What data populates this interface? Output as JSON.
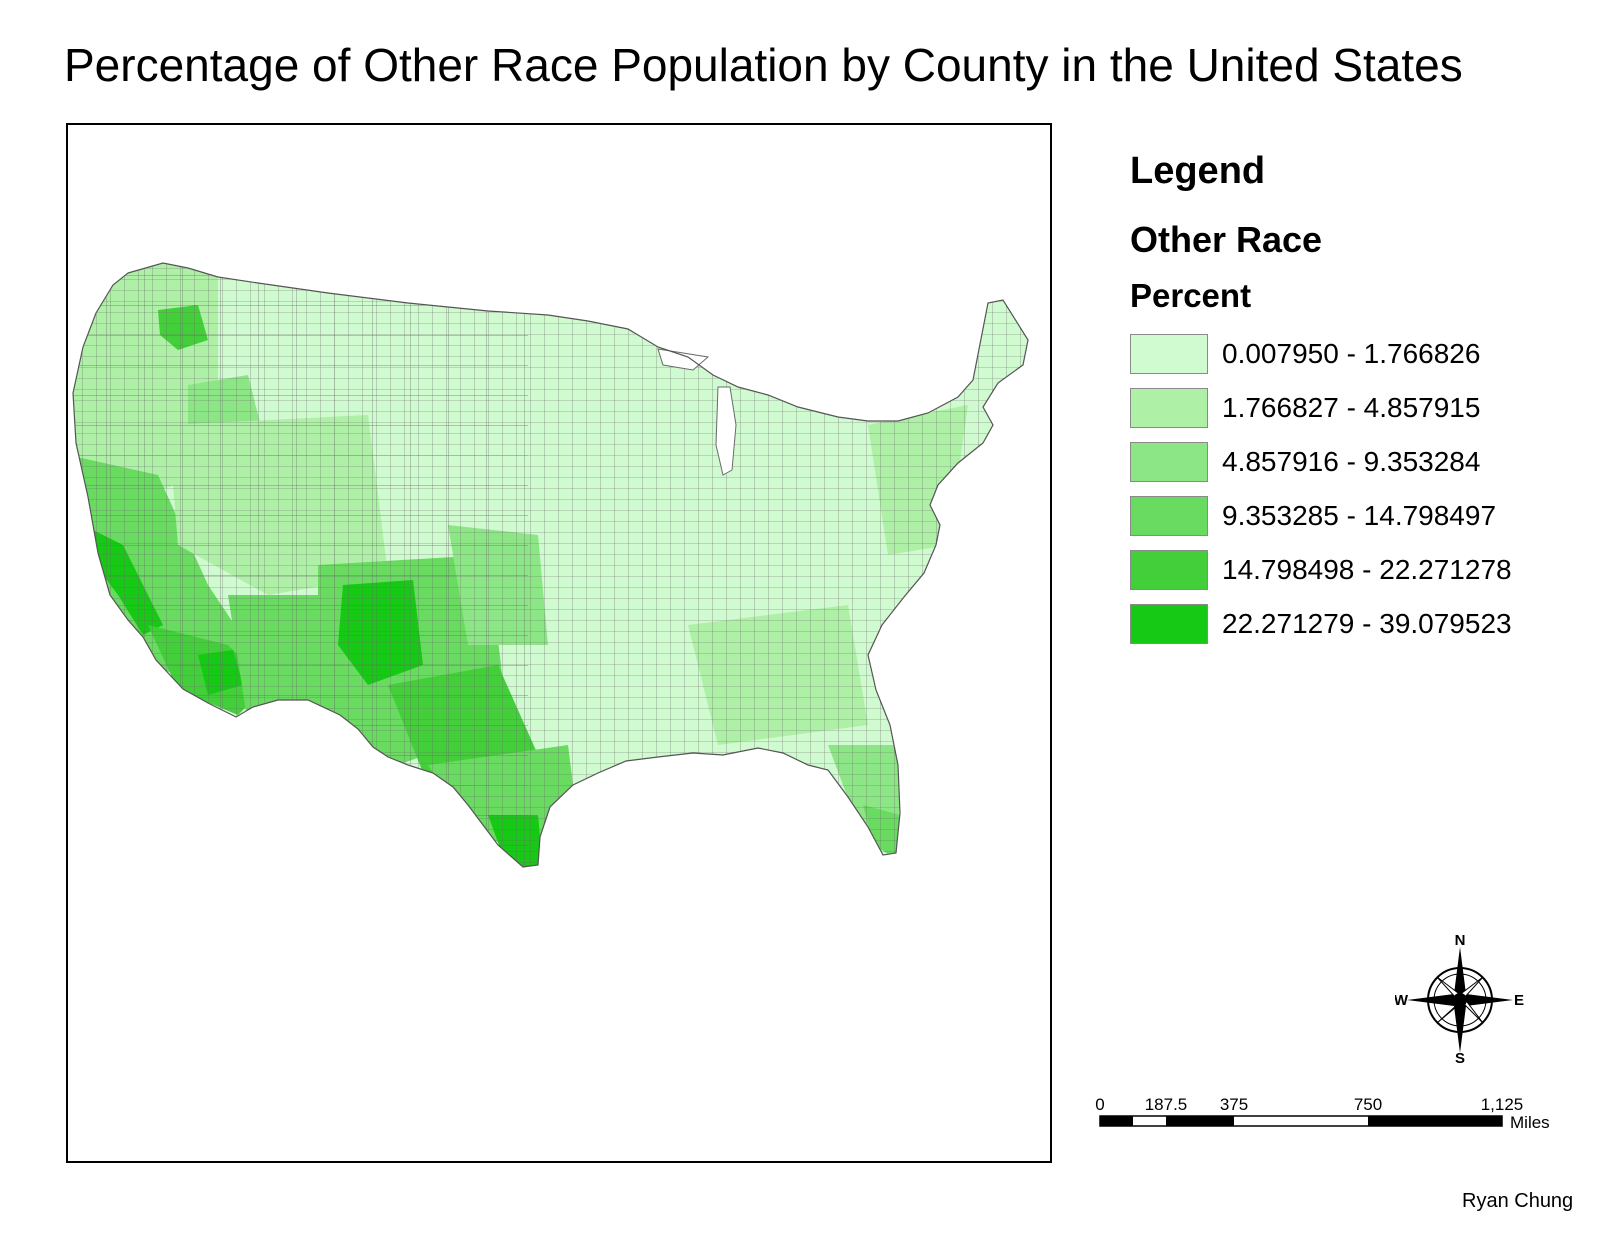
{
  "title": "Percentage of Other Race Population by County in the United States",
  "legend": {
    "heading": "Legend",
    "layer": "Other Race",
    "field": "Percent",
    "classes": [
      {
        "label": "0.007950 - 1.766826",
        "color": "#d0fad0"
      },
      {
        "label": "1.766827 - 4.857915",
        "color": "#aef0a6"
      },
      {
        "label": "4.857916 - 9.353284",
        "color": "#8de686"
      },
      {
        "label": "9.353285 - 14.798497",
        "color": "#68db60"
      },
      {
        "label": "14.798498 - 22.271278",
        "color": "#42cf3a"
      },
      {
        "label": "22.271279 - 39.079523",
        "color": "#16c914"
      }
    ]
  },
  "compass": {
    "n": "N",
    "s": "S",
    "e": "E",
    "w": "W"
  },
  "scalebar": {
    "ticks": [
      "0",
      "187.5",
      "375",
      "750",
      "1,125"
    ],
    "unit": "Miles"
  },
  "credit": "Ryan Chung",
  "map_features": [
    {
      "name": "continental-us",
      "class": 0
    },
    {
      "name": "pacific-northwest-zone",
      "class": 1
    },
    {
      "name": "central-washington-zone",
      "class": 4
    },
    {
      "name": "idaho-oregon-zone",
      "class": 2
    },
    {
      "name": "california-zone",
      "class": 3
    },
    {
      "name": "california-central-valley",
      "class": 5
    },
    {
      "name": "southern-california-zone",
      "class": 4
    },
    {
      "name": "imperial-zone",
      "class": 5
    },
    {
      "name": "nevada-utah-zone",
      "class": 1
    },
    {
      "name": "arizona-zone",
      "class": 3
    },
    {
      "name": "colorado-new-mexico-zone",
      "class": 3
    },
    {
      "name": "san-luis-valley",
      "class": 5
    },
    {
      "name": "west-texas-zone",
      "class": 4
    },
    {
      "name": "south-texas-zone",
      "class": 3
    },
    {
      "name": "rio-grande-valley",
      "class": 5
    },
    {
      "name": "kansas-oklahoma-zone",
      "class": 2
    },
    {
      "name": "florida-zone",
      "class": 2
    },
    {
      "name": "south-florida-zone",
      "class": 3
    },
    {
      "name": "northeast-corridor-zone",
      "class": 1
    },
    {
      "name": "southeast-zone",
      "class": 1
    }
  ]
}
